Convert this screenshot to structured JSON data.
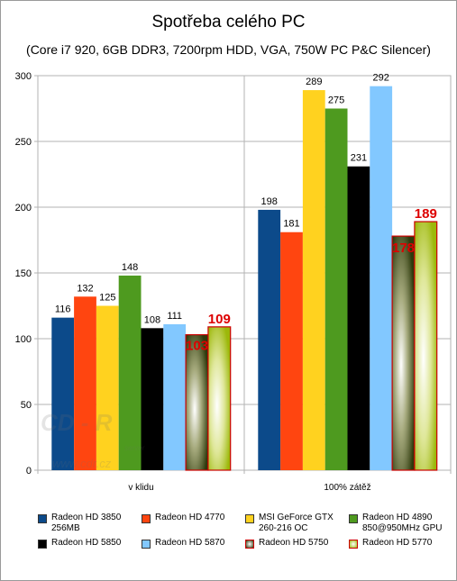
{
  "chart_data": {
    "type": "bar",
    "title": "Spotřeba celého PC",
    "subtitle": "(Core i7 920, 6GB DDR3, 7200rpm HDD, VGA, 750W PC P&C Silencer)",
    "categories": [
      "v klidu",
      "100% zátěž"
    ],
    "ylim": [
      0,
      300
    ],
    "yticks": [
      0,
      50,
      100,
      150,
      200,
      250,
      300
    ],
    "grid": true,
    "legend_position": "bottom",
    "series": [
      {
        "name": "Radeon HD 3850 256MB",
        "color": "#0c4a8a",
        "values": [
          116,
          198
        ]
      },
      {
        "name": "Radeon HD 4770",
        "color": "#ff4510",
        "values": [
          132,
          181
        ]
      },
      {
        "name": "MSI GeForce GTX 260-216 OC",
        "color": "#ffd21f",
        "values": [
          125,
          289
        ]
      },
      {
        "name": "Radeon HD 4890 850@950MHz GPU",
        "color": "#4e9a1f",
        "values": [
          148,
          275
        ]
      },
      {
        "name": "Radeon HD 5850",
        "color": "#000000",
        "values": [
          108,
          231
        ]
      },
      {
        "name": "Radeon HD 5870",
        "color": "#82c8ff",
        "values": [
          111,
          292
        ]
      },
      {
        "name": "Radeon HD 5750",
        "color": "#4b5a1e",
        "values": [
          103,
          178
        ],
        "highlight": true
      },
      {
        "name": "Radeon HD 5770",
        "color": "#b5cc18",
        "values": [
          109,
          189
        ],
        "highlight": true
      }
    ],
    "value_labels": [
      [
        "116",
        "198"
      ],
      [
        "132",
        "181"
      ],
      [
        "125",
        "289"
      ],
      [
        "148",
        "275"
      ],
      [
        "108",
        "231"
      ],
      [
        "111",
        "292"
      ],
      [
        "103",
        "178"
      ],
      [
        "109",
        "189"
      ]
    ],
    "watermark": "CD-R server www.cdr.cz"
  }
}
